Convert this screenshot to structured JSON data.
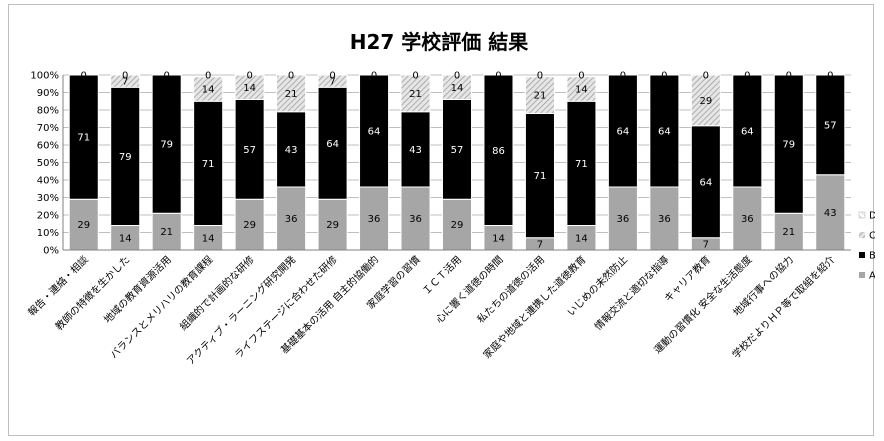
{
  "chart_data": {
    "type": "bar",
    "stacked": "percent",
    "title": "H27 学校評価 結果",
    "ylim": [
      0,
      100
    ],
    "yticks": [
      "0%",
      "10%",
      "20%",
      "30%",
      "40%",
      "50%",
      "60%",
      "70%",
      "80%",
      "90%",
      "100%"
    ],
    "grid": true,
    "legend_position": "right",
    "categories": [
      "報告・連絡・相談",
      "教師の特徴を生かした",
      "地域の教育資源活用",
      "バランスとメリハリの教育課程",
      "組織的で計画的な研修",
      "アクティブ・ラーニング研究開発",
      "ライフステージに合わせた研修",
      "基礎基本の活用 自主的協働的",
      "家庭学習の習慣",
      "ＩＣＴ活用",
      "心に響く道徳の時間",
      "私たちの道徳の活用",
      "家庭や地域と連携した道徳教育",
      "いじめの未然防止",
      "情報交流と適切な指導",
      "キャリア教育",
      "運動の習慣化 安全な生活態度",
      "地域行事への協力",
      "学校だよりＨＰ等で取組を紹介"
    ],
    "series": [
      {
        "name": "A",
        "values": [
          29,
          14,
          21,
          14,
          29,
          36,
          29,
          36,
          36,
          29,
          14,
          7,
          14,
          36,
          36,
          7,
          36,
          21,
          43
        ],
        "color": "#a6a6a6"
      },
      {
        "name": "B",
        "values": [
          71,
          79,
          79,
          71,
          57,
          43,
          64,
          64,
          43,
          57,
          86,
          71,
          71,
          64,
          64,
          64,
          64,
          79,
          57
        ],
        "color": "#000000"
      },
      {
        "name": "C",
        "values": [
          0,
          7,
          0,
          14,
          14,
          21,
          7,
          0,
          21,
          14,
          0,
          21,
          14,
          0,
          0,
          29,
          0,
          0,
          0
        ],
        "color": "#d9d9d9"
      },
      {
        "name": "D",
        "values": [
          0,
          0,
          0,
          0,
          0,
          0,
          0,
          0,
          0,
          0,
          0,
          0,
          0,
          0,
          0,
          0,
          0,
          0,
          0
        ],
        "color": "#ffffff"
      }
    ],
    "legend_order": [
      "D",
      "C",
      "B",
      "A"
    ]
  }
}
